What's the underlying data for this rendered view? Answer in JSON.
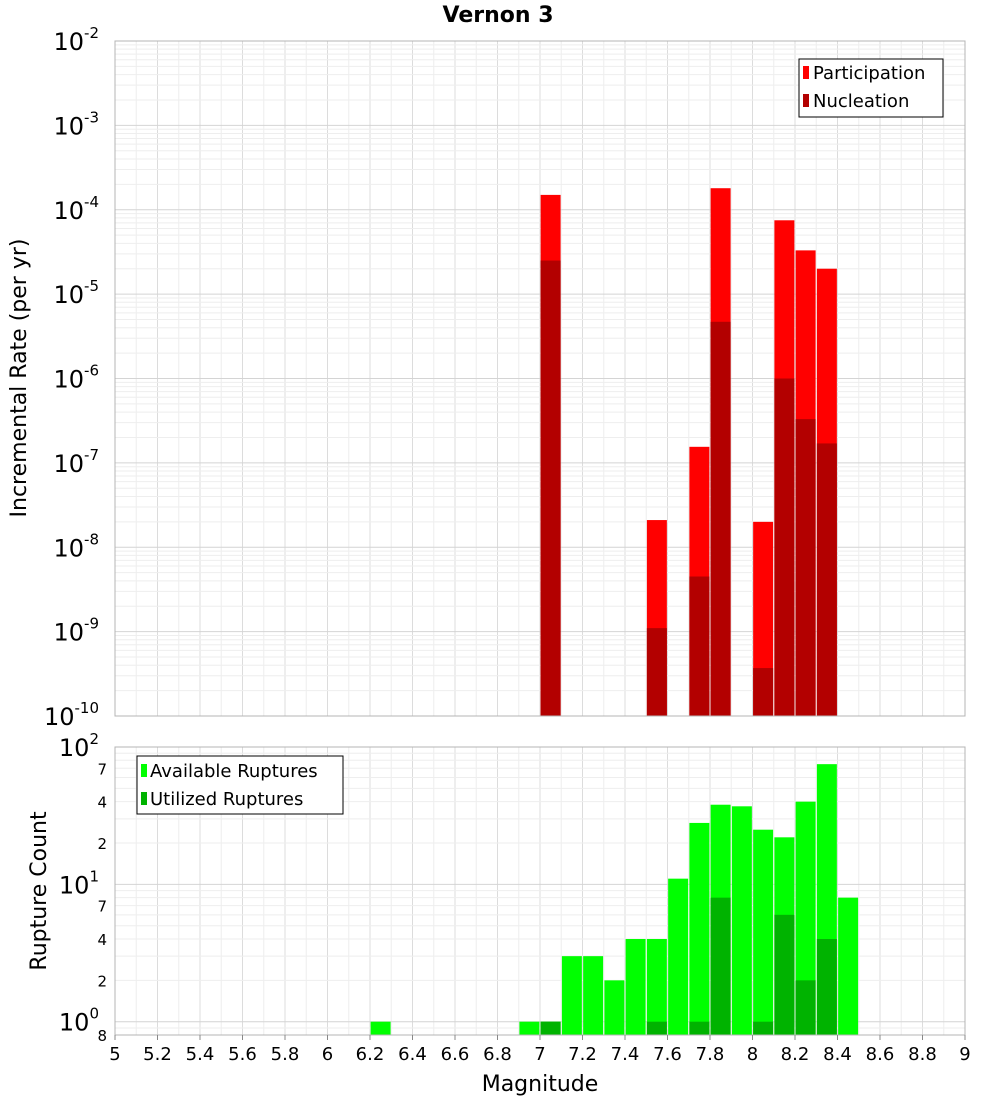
{
  "chart_data": [
    {
      "type": "bar",
      "title": "Vernon 3",
      "ylabel": "Incremental Rate (per yr)",
      "xlabel": "",
      "yscale": "log",
      "ylim": [
        1e-10,
        0.01
      ],
      "xlim": [
        5,
        9
      ],
      "legend_position": "top-right",
      "grid": true,
      "y_tick_labels": [
        {
          "base": "10",
          "exp": "-2"
        },
        {
          "base": "10",
          "exp": "-3"
        },
        {
          "base": "10",
          "exp": "-4"
        },
        {
          "base": "10",
          "exp": "-5"
        },
        {
          "base": "10",
          "exp": "-6"
        },
        {
          "base": "10",
          "exp": "-7"
        },
        {
          "base": "10",
          "exp": "-8"
        },
        {
          "base": "10",
          "exp": "-9"
        },
        {
          "base": "10",
          "exp": "-10"
        }
      ],
      "series": [
        {
          "name": "Participation",
          "color": "#ff0000",
          "points": [
            {
              "x": 7.05,
              "y": 0.00015
            },
            {
              "x": 7.55,
              "y": 2.1e-08
            },
            {
              "x": 7.75,
              "y": 1.55e-07
            },
            {
              "x": 7.85,
              "y": 0.00018
            },
            {
              "x": 8.05,
              "y": 2e-08
            },
            {
              "x": 8.15,
              "y": 7.5e-05
            },
            {
              "x": 8.25,
              "y": 3.3e-05
            },
            {
              "x": 8.35,
              "y": 2e-05
            }
          ]
        },
        {
          "name": "Nucleation",
          "color": "#b30000",
          "points": [
            {
              "x": 7.05,
              "y": 2.5e-05
            },
            {
              "x": 7.55,
              "y": 1.1e-09
            },
            {
              "x": 7.75,
              "y": 4.5e-09
            },
            {
              "x": 7.85,
              "y": 4.7e-06
            },
            {
              "x": 8.05,
              "y": 3.7e-10
            },
            {
              "x": 8.15,
              "y": 1e-06
            },
            {
              "x": 8.25,
              "y": 3.3e-07
            },
            {
              "x": 8.35,
              "y": 1.7e-07
            }
          ]
        }
      ]
    },
    {
      "type": "bar",
      "title": "",
      "ylabel": "Rupture Count",
      "xlabel": "Magnitude",
      "yscale": "log",
      "ylim": [
        0.8,
        100
      ],
      "xlim": [
        5,
        9
      ],
      "legend_position": "top-left",
      "grid": true,
      "x_tick_labels": [
        "5",
        "5.2",
        "5.4",
        "5.6",
        "5.8",
        "6",
        "6.2",
        "6.4",
        "6.6",
        "6.8",
        "7",
        "7.2",
        "7.4",
        "7.6",
        "7.8",
        "8",
        "8.2",
        "8.4",
        "8.6",
        "8.8",
        "9"
      ],
      "y_tick_labels": [
        {
          "value": 100,
          "base": "10",
          "exp": "2"
        },
        {
          "value": 10,
          "base": "10",
          "exp": "1"
        },
        {
          "value": 1,
          "base": "10",
          "exp": "0"
        }
      ],
      "y_minor_tick_labels": [
        {
          "value": 70,
          "label": "7"
        },
        {
          "value": 40,
          "label": "4"
        },
        {
          "value": 20,
          "label": "2"
        },
        {
          "value": 7,
          "label": "7"
        },
        {
          "value": 4,
          "label": "4"
        },
        {
          "value": 2,
          "label": "2"
        },
        {
          "value": 0.8,
          "label": "8"
        }
      ],
      "series": [
        {
          "name": "Available Ruptures",
          "color": "#00ff00",
          "points": [
            {
              "x": 6.25,
              "y": 1
            },
            {
              "x": 6.95,
              "y": 1
            },
            {
              "x": 7.05,
              "y": 1
            },
            {
              "x": 7.15,
              "y": 3
            },
            {
              "x": 7.25,
              "y": 3
            },
            {
              "x": 7.35,
              "y": 2
            },
            {
              "x": 7.45,
              "y": 4
            },
            {
              "x": 7.55,
              "y": 4
            },
            {
              "x": 7.65,
              "y": 11
            },
            {
              "x": 7.75,
              "y": 28
            },
            {
              "x": 7.85,
              "y": 38
            },
            {
              "x": 7.95,
              "y": 37
            },
            {
              "x": 8.05,
              "y": 25
            },
            {
              "x": 8.15,
              "y": 22
            },
            {
              "x": 8.25,
              "y": 40
            },
            {
              "x": 8.35,
              "y": 75
            },
            {
              "x": 8.45,
              "y": 8
            }
          ]
        },
        {
          "name": "Utilized Ruptures",
          "color": "#00b300",
          "points": [
            {
              "x": 7.05,
              "y": 1
            },
            {
              "x": 7.55,
              "y": 1
            },
            {
              "x": 7.75,
              "y": 1
            },
            {
              "x": 7.85,
              "y": 8
            },
            {
              "x": 8.05,
              "y": 1
            },
            {
              "x": 8.15,
              "y": 6
            },
            {
              "x": 8.25,
              "y": 2
            },
            {
              "x": 8.35,
              "y": 4
            }
          ]
        }
      ]
    }
  ]
}
